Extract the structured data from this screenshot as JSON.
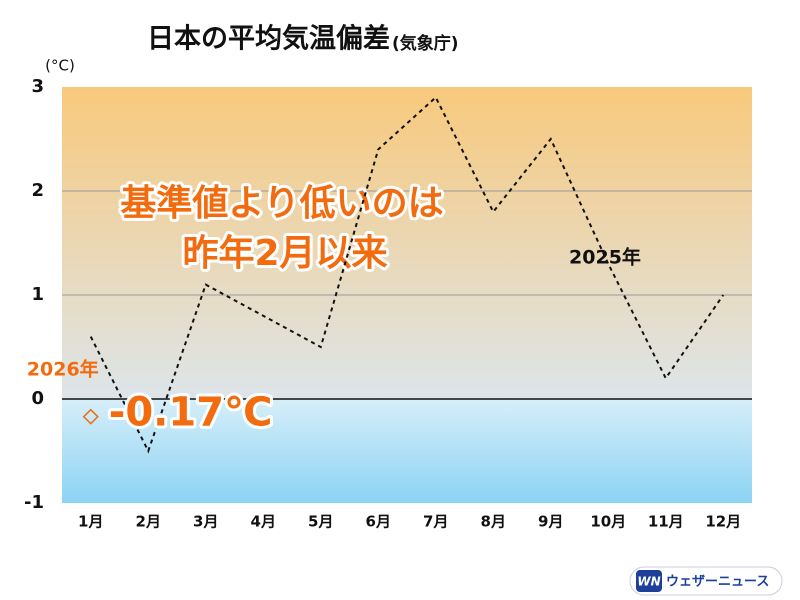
{
  "chart_data": {
    "type": "line",
    "title": "日本の平均気温偏差",
    "subtitle": "(気象庁)",
    "y_label": "(°C)",
    "categories": [
      "1月",
      "2月",
      "3月",
      "4月",
      "5月",
      "6月",
      "7月",
      "8月",
      "9月",
      "10月",
      "11月",
      "12月"
    ],
    "series": [
      {
        "name": "2025年",
        "color": "#111111",
        "values": [
          0.6,
          -0.5,
          1.1,
          0.8,
          0.5,
          2.4,
          2.9,
          1.8,
          2.5,
          1.3,
          0.2,
          1.0
        ]
      },
      {
        "name": "2026年",
        "color": "#f26b0f",
        "values": [
          -0.17,
          null,
          null,
          null,
          null,
          null,
          null,
          null,
          null,
          null,
          null,
          null
        ],
        "value_labels": [
          "-0.17℃",
          null,
          null,
          null,
          null,
          null,
          null,
          null,
          null,
          null,
          null,
          null
        ]
      }
    ],
    "ylim": [
      -1,
      3
    ],
    "yticks": [
      -1,
      0,
      1,
      2,
      3
    ],
    "grid": true,
    "annotations": [
      "基準値より低いのは",
      "昨年2月以来"
    ],
    "logo": {
      "mark": "WN",
      "text": "ウェザーニュース"
    }
  }
}
